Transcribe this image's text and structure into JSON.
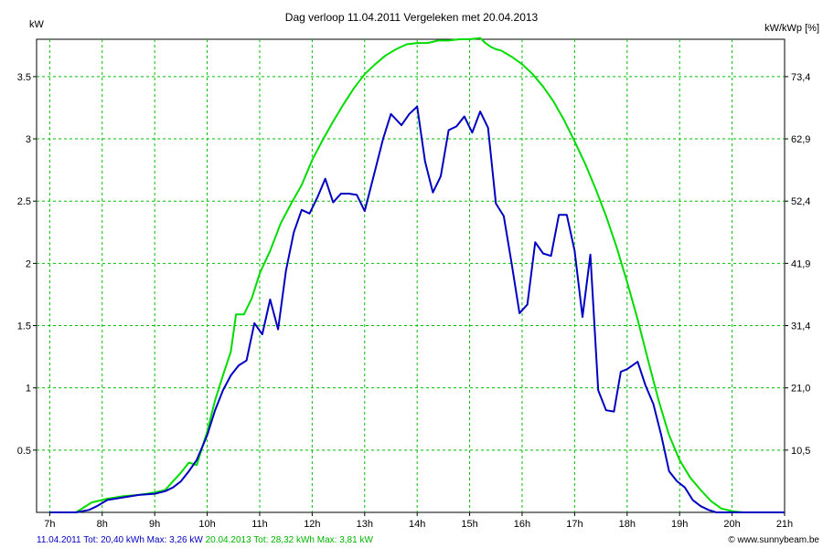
{
  "chart_data": {
    "type": "line",
    "title": "Dag  verloop 11.04.2011   Vergeleken met 20.04.2013",
    "ylabel_left": "kW",
    "ylabel_right": "kW/kWp [%]",
    "xlim": [
      6.75,
      21
    ],
    "ylim": [
      0,
      3.8
    ],
    "x_ticks": [
      7,
      8,
      9,
      10,
      11,
      12,
      13,
      14,
      15,
      16,
      17,
      18,
      19,
      20,
      21
    ],
    "x_tick_labels": [
      "7h",
      "8h",
      "9h",
      "10h",
      "11h",
      "12h",
      "13h",
      "14h",
      "15h",
      "16h",
      "17h",
      "18h",
      "19h",
      "20h",
      "21h"
    ],
    "y_ticks_left": [
      0.5,
      1,
      1.5,
      2,
      2.5,
      3,
      3.5
    ],
    "y_tick_labels_left": [
      "0.5",
      "1",
      "1.5",
      "2",
      "2.5",
      "3",
      "3.5"
    ],
    "y_tick_labels_right": [
      "10,5",
      "21,0",
      "31,4",
      "41,9",
      "52,4",
      "62,9",
      "73,4"
    ],
    "grid": true,
    "series": [
      {
        "name": "11.04.2011",
        "color": "#0000c0",
        "x": [
          7.0,
          7.5,
          7.75,
          7.9,
          8.1,
          8.4,
          8.7,
          9.0,
          9.2,
          9.35,
          9.5,
          9.65,
          9.8,
          10.0,
          10.15,
          10.3,
          10.45,
          10.6,
          10.75,
          10.9,
          11.05,
          11.2,
          11.35,
          11.5,
          11.65,
          11.8,
          11.95,
          12.1,
          12.25,
          12.4,
          12.55,
          12.7,
          12.85,
          13.0,
          13.2,
          13.35,
          13.5,
          13.7,
          13.85,
          14.0,
          14.15,
          14.3,
          14.45,
          14.6,
          14.75,
          14.9,
          15.05,
          15.2,
          15.35,
          15.5,
          15.65,
          15.8,
          15.95,
          16.1,
          16.25,
          16.4,
          16.55,
          16.7,
          16.85,
          17.0,
          17.15,
          17.3,
          17.45,
          17.6,
          17.75,
          17.88,
          18.0,
          18.2,
          18.35,
          18.5,
          18.65,
          18.8,
          18.95,
          19.1,
          19.25,
          19.4,
          19.55,
          19.7,
          19.85,
          20.0,
          20.2,
          20.4,
          20.6,
          21.0
        ],
        "y": [
          0.0,
          0.0,
          0.02,
          0.05,
          0.1,
          0.12,
          0.14,
          0.15,
          0.17,
          0.2,
          0.25,
          0.33,
          0.42,
          0.62,
          0.82,
          0.98,
          1.1,
          1.18,
          1.22,
          1.52,
          1.43,
          1.71,
          1.47,
          1.94,
          2.25,
          2.43,
          2.4,
          2.53,
          2.68,
          2.49,
          2.56,
          2.56,
          2.55,
          2.42,
          2.75,
          3.0,
          3.2,
          3.11,
          3.2,
          3.26,
          2.82,
          2.57,
          2.7,
          3.07,
          3.1,
          3.18,
          3.05,
          3.22,
          3.09,
          2.48,
          2.38,
          2.0,
          1.6,
          1.67,
          2.17,
          2.08,
          2.06,
          2.39,
          2.39,
          2.1,
          1.57,
          2.07,
          0.98,
          0.82,
          0.81,
          1.13,
          1.15,
          1.21,
          1.02,
          0.87,
          0.62,
          0.33,
          0.25,
          0.2,
          0.1,
          0.05,
          0.02,
          0.0,
          0.0,
          0.0,
          0.0,
          0.0,
          0.0,
          0.0
        ],
        "tot": "Tot: 20,40 kWh",
        "max": "Max: 3,26 kW"
      },
      {
        "name": "20.04.2013",
        "color": "#00dc00",
        "x": [
          7.0,
          7.3,
          7.5,
          7.8,
          8.1,
          8.4,
          8.7,
          9.0,
          9.2,
          9.35,
          9.5,
          9.65,
          9.8,
          10.0,
          10.15,
          10.3,
          10.45,
          10.55,
          10.7,
          10.85,
          11.0,
          11.2,
          11.4,
          11.6,
          11.8,
          12.0,
          12.2,
          12.4,
          12.6,
          12.8,
          13.0,
          13.2,
          13.4,
          13.6,
          13.8,
          14.0,
          14.2,
          14.4,
          14.6,
          14.8,
          15.0,
          15.2,
          15.3,
          15.4,
          15.5,
          15.6,
          15.8,
          16.0,
          16.2,
          16.4,
          16.6,
          16.8,
          17.0,
          17.2,
          17.4,
          17.6,
          17.8,
          18.0,
          18.2,
          18.4,
          18.6,
          18.8,
          19.0,
          19.2,
          19.4,
          19.6,
          19.8,
          20.0,
          20.2,
          20.4,
          20.5,
          20.6,
          21.0
        ],
        "y": [
          0.0,
          0.0,
          0.0,
          0.08,
          0.11,
          0.13,
          0.14,
          0.16,
          0.18,
          0.25,
          0.32,
          0.4,
          0.38,
          0.65,
          0.9,
          1.1,
          1.29,
          1.59,
          1.59,
          1.72,
          1.92,
          2.1,
          2.32,
          2.48,
          2.63,
          2.83,
          2.99,
          3.14,
          3.28,
          3.41,
          3.52,
          3.6,
          3.67,
          3.72,
          3.76,
          3.77,
          3.77,
          3.79,
          3.79,
          3.8,
          3.8,
          3.81,
          3.77,
          3.74,
          3.72,
          3.71,
          3.66,
          3.6,
          3.52,
          3.42,
          3.3,
          3.15,
          2.98,
          2.8,
          2.6,
          2.38,
          2.13,
          1.85,
          1.55,
          1.22,
          0.9,
          0.62,
          0.42,
          0.28,
          0.18,
          0.09,
          0.03,
          0.01,
          0.0,
          0.0,
          0.0,
          0.0,
          0.0
        ],
        "tot": "Tot: 28,32 kWh",
        "max": "Max: 3,81 kW"
      }
    ],
    "footer_right": "© www.sunnybeam.be"
  }
}
